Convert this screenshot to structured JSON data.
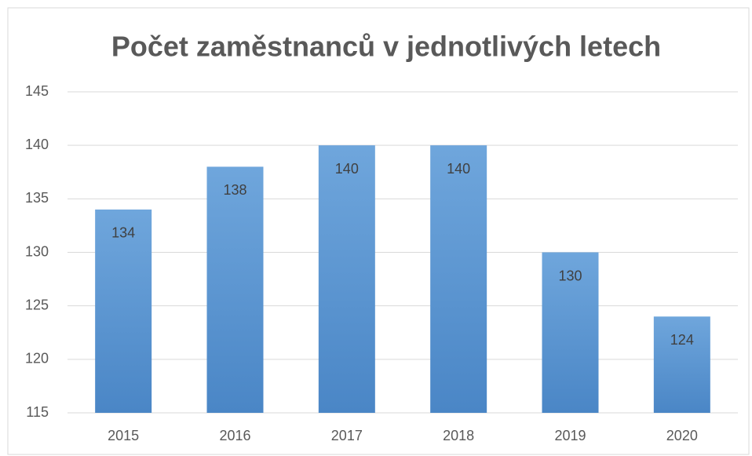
{
  "chart_data": {
    "type": "bar",
    "title": "Počet zaměstnanců v jednotlivých letech",
    "categories": [
      "2015",
      "2016",
      "2017",
      "2018",
      "2019",
      "2020"
    ],
    "values": [
      134,
      138,
      140,
      140,
      130,
      124
    ],
    "color": "#5b9bd5",
    "ylim": [
      115,
      145
    ],
    "yticks": [
      115,
      120,
      125,
      130,
      135,
      140,
      145
    ],
    "grid": true,
    "data_labels": true
  }
}
